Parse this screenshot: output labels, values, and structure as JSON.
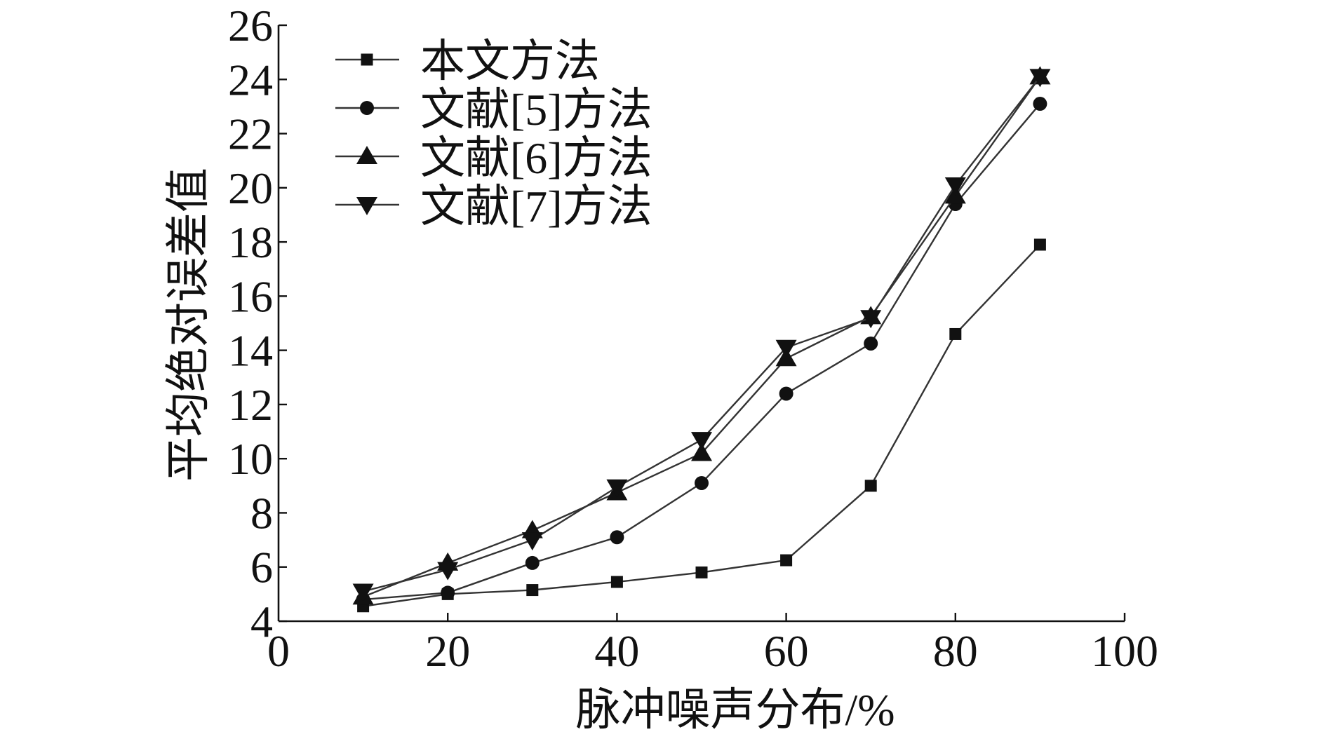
{
  "chart_data": {
    "type": "line",
    "xlabel": "脉冲噪声分布/%",
    "ylabel": "平均绝对误差值",
    "xlim": [
      0,
      100
    ],
    "ylim": [
      4,
      26
    ],
    "xticks": [
      0,
      20,
      40,
      60,
      80,
      100
    ],
    "yticks": [
      4,
      6,
      8,
      10,
      12,
      14,
      16,
      18,
      20,
      22,
      24,
      26
    ],
    "grid": false,
    "legend": "top-left",
    "x": [
      10,
      20,
      30,
      40,
      50,
      60,
      70,
      80,
      90
    ],
    "series": [
      {
        "name": "本文方法",
        "marker": "square",
        "values": [
          4.55,
          5.0,
          5.15,
          5.45,
          5.8,
          6.25,
          9.0,
          14.6,
          17.9
        ]
      },
      {
        "name": "文献[5]方法",
        "marker": "circle",
        "values": [
          4.8,
          5.05,
          6.15,
          7.1,
          9.1,
          12.4,
          14.25,
          19.4,
          23.1
        ]
      },
      {
        "name": "文献[6]方法",
        "marker": "triangle-up",
        "values": [
          4.9,
          6.15,
          7.35,
          8.75,
          10.2,
          13.7,
          15.25,
          19.7,
          24.1
        ]
      },
      {
        "name": "文献[7]方法",
        "marker": "triangle-down",
        "values": [
          5.1,
          5.9,
          7.0,
          8.95,
          10.7,
          14.1,
          15.2,
          20.1,
          24.1
        ]
      }
    ],
    "colors": {
      "line": "#333333",
      "marker": "#111111",
      "axis": "#111111",
      "text": "#111111"
    }
  }
}
